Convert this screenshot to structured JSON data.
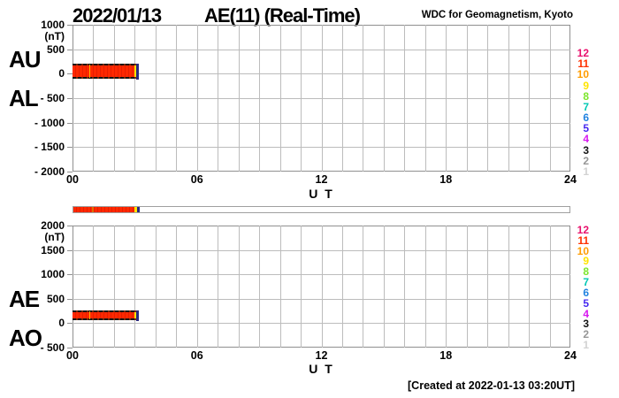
{
  "header": {
    "date": "2022/01/13",
    "title": "AE(11) (Real-Time)",
    "source": "WDC for Geomagnetism, Kyoto"
  },
  "footer": {
    "created_note": "[Created at 2022-01-13 03:20UT]"
  },
  "colors": {
    "background": "#FFFFFF",
    "grid": "#BCBCBC",
    "frame": "#909090",
    "tick": "#909090",
    "band_edge": "#141414",
    "bar_border": "#A0A0A0",
    "bar_empty": "#FFFFFF"
  },
  "legend": {
    "meaning": "number of stations used (color code)",
    "values": [
      "12",
      "11",
      "10",
      "9",
      "8",
      "7",
      "6",
      "5",
      "4",
      "3",
      "2",
      "1"
    ],
    "colors": [
      "#E8106C",
      "#FF3000",
      "#FF9C00",
      "#FFE400",
      "#7CE62C",
      "#00C8B4",
      "#2082E0",
      "#4628F0",
      "#D818F0",
      "#141414",
      "#969696",
      "#D2D2D2"
    ]
  },
  "chart_data": [
    {
      "type": "line",
      "name": "AU-AL panel",
      "left_labels": [
        "AU",
        "AL"
      ],
      "unit": "(nT)",
      "ylim": [
        -2000,
        1000
      ],
      "y_ticks": [
        {
          "label": "1000",
          "value": 1000
        },
        {
          "label": "500",
          "value": 500
        },
        {
          "label": "0",
          "value": 0
        },
        {
          "label": "- 500",
          "value": -500
        },
        {
          "label": "- 1000",
          "value": -1000
        },
        {
          "label": "- 1500",
          "value": -1500
        },
        {
          "label": "- 2000",
          "value": -2000
        }
      ],
      "x_ticks": [
        {
          "label": "00",
          "hour": 0
        },
        {
          "label": "06",
          "hour": 6
        },
        {
          "label": "12",
          "hour": 12
        },
        {
          "label": "18",
          "hour": 18
        },
        {
          "label": "24",
          "hour": 24
        }
      ],
      "xlabel": "U T",
      "xlim_hours": [
        0,
        24
      ],
      "grid": true,
      "series": [
        {
          "name": "AU",
          "visible_hours": [
            0,
            3.2
          ],
          "approx_value_range_nT": [
            50,
            195
          ]
        },
        {
          "name": "AL",
          "visible_hours": [
            0,
            3.2
          ],
          "approx_value_range_nT": [
            -85,
            40
          ]
        }
      ],
      "band": {
        "start_hour": 0,
        "end_hour": 3.2,
        "top_nT": 195,
        "bottom_nT": -85,
        "segments": [
          {
            "station_count": 11,
            "color": "#FF2800",
            "stripe": "#E61E00",
            "start_hour": 0,
            "end_hour": 2.97
          },
          {
            "station_count": 9,
            "color": "#FFE400",
            "start_hour": 2.97,
            "end_hour": 3.08
          },
          {
            "station_count": 5,
            "color": "#2A2A80",
            "start_hour": 3.08,
            "end_hour": 3.2
          }
        ],
        "edge_end_hour": 3.08,
        "marker_hour": 0.79,
        "marker_color": "#FFB400"
      }
    },
    {
      "type": "line",
      "name": "AE-AO panel",
      "left_labels": [
        "AE",
        "AO"
      ],
      "unit": "(nT)",
      "ylim": [
        -500,
        2000
      ],
      "y_ticks": [
        {
          "label": "2000",
          "value": 2000
        },
        {
          "label": "1500",
          "value": 1500
        },
        {
          "label": "1000",
          "value": 1000
        },
        {
          "label": "500",
          "value": 500
        },
        {
          "label": "0",
          "value": 0
        },
        {
          "label": "- 500",
          "value": -500
        }
      ],
      "x_ticks": [
        {
          "label": "00",
          "hour": 0
        },
        {
          "label": "06",
          "hour": 6
        },
        {
          "label": "12",
          "hour": 12
        },
        {
          "label": "18",
          "hour": 18
        },
        {
          "label": "24",
          "hour": 24
        }
      ],
      "xlabel": "U T",
      "xlim_hours": [
        0,
        24
      ],
      "grid": true,
      "series": [
        {
          "name": "AE",
          "visible_hours": [
            0,
            3.2
          ],
          "approx_value_range_nT": [
            90,
            250
          ]
        },
        {
          "name": "AO",
          "visible_hours": [
            0,
            3.2
          ],
          "approx_value_range_nT": [
            20,
            80
          ]
        }
      ],
      "band": {
        "start_hour": 0,
        "end_hour": 3.2,
        "top_nT": 250,
        "bottom_nT": 75,
        "segments": [
          {
            "station_count": 11,
            "color": "#FF2800",
            "stripe": "#E61E00",
            "start_hour": 0,
            "end_hour": 2.97
          },
          {
            "station_count": 9,
            "color": "#FFE400",
            "start_hour": 2.97,
            "end_hour": 3.08
          },
          {
            "station_count": 5,
            "color": "#2A2A80",
            "start_hour": 3.08,
            "end_hour": 3.2
          }
        ],
        "edge_end_hour": 3.08,
        "marker_hour": 0.79,
        "marker_color": "#FFB400"
      }
    }
  ],
  "availability_bar": {
    "xlim_hours": [
      0,
      24
    ],
    "segments": [
      {
        "station_count": 11,
        "color": "#FF2800",
        "stripe": "#E61E00",
        "start_hour": 0,
        "end_hour": 2.97
      },
      {
        "station_count": 9,
        "color": "#FFE400",
        "start_hour": 2.97,
        "end_hour": 3.08
      },
      {
        "station_count": 5,
        "color": "#2A2A80",
        "start_hour": 3.08,
        "end_hour": 3.2
      }
    ],
    "marker_hour": 0.9,
    "marker_color": "#E07000"
  }
}
